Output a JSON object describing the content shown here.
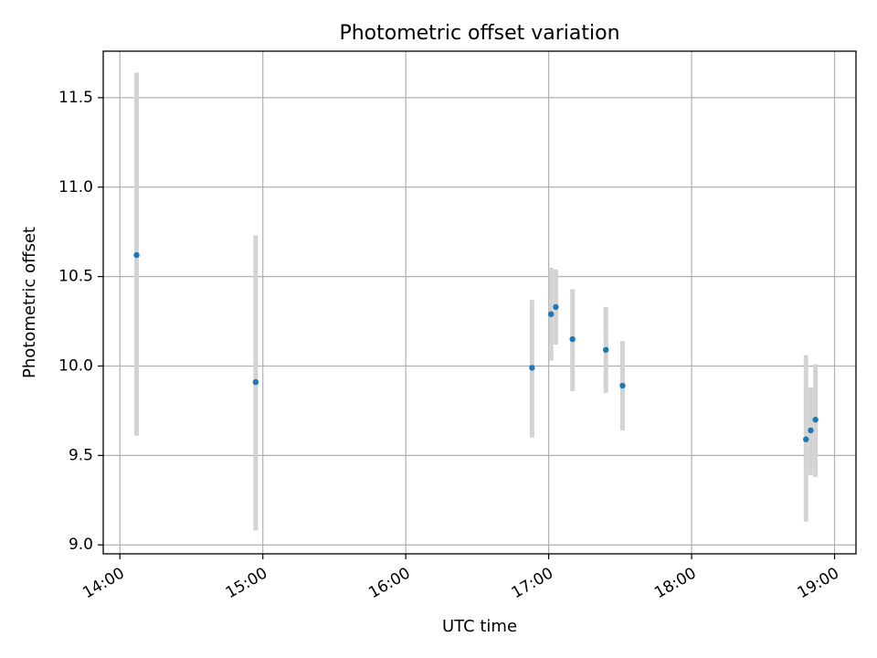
{
  "chart_data": {
    "type": "scatter",
    "title": "Photometric offset variation",
    "xlabel": "UTC time",
    "ylabel": "Photometric offset",
    "x_unit": "UTC time (HH:MM)",
    "xlim": [
      "13:53",
      "19:09"
    ],
    "ylim": [
      8.95,
      11.76
    ],
    "x_ticks": [
      "14:00",
      "15:00",
      "16:00",
      "17:00",
      "18:00",
      "19:00"
    ],
    "y_ticks": [
      9.0,
      9.5,
      10.0,
      10.5,
      11.0,
      11.5
    ],
    "y_tick_labels": [
      "9.0",
      "9.5",
      "10.0",
      "10.5",
      "11.0",
      "11.5"
    ],
    "grid": true,
    "point_color": "#1f77b4",
    "errorbar_color": "#d3d3d3",
    "points": [
      {
        "x": "14:07",
        "y": 10.62,
        "ylow": 9.61,
        "yhigh": 11.64
      },
      {
        "x": "14:57",
        "y": 9.91,
        "ylow": 9.08,
        "yhigh": 10.73
      },
      {
        "x": "16:53",
        "y": 9.99,
        "ylow": 9.6,
        "yhigh": 10.37
      },
      {
        "x": "17:01",
        "y": 10.29,
        "ylow": 10.03,
        "yhigh": 10.55
      },
      {
        "x": "17:03",
        "y": 10.33,
        "ylow": 10.12,
        "yhigh": 10.54
      },
      {
        "x": "17:10",
        "y": 10.15,
        "ylow": 9.86,
        "yhigh": 10.43
      },
      {
        "x": "17:24",
        "y": 10.09,
        "ylow": 9.85,
        "yhigh": 10.33
      },
      {
        "x": "17:31",
        "y": 9.89,
        "ylow": 9.64,
        "yhigh": 10.14
      },
      {
        "x": "18:48",
        "y": 9.59,
        "ylow": 9.13,
        "yhigh": 10.06
      },
      {
        "x": "18:50",
        "y": 9.64,
        "ylow": 9.39,
        "yhigh": 9.88
      },
      {
        "x": "18:52",
        "y": 9.7,
        "ylow": 9.38,
        "yhigh": 10.01
      }
    ]
  }
}
